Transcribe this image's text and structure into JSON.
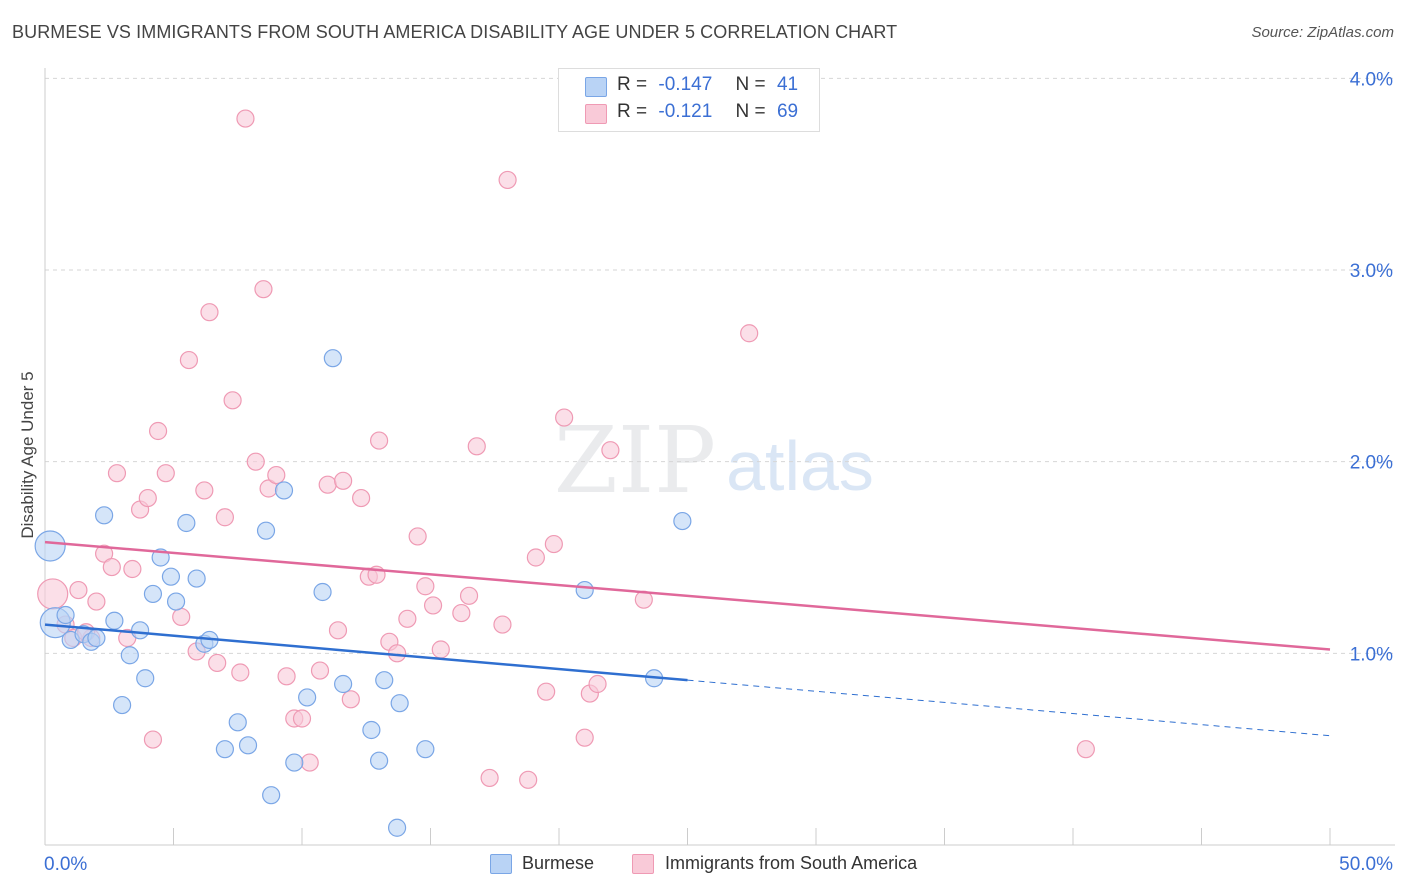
{
  "title": "BURMESE VS IMMIGRANTS FROM SOUTH AMERICA DISABILITY AGE UNDER 5 CORRELATION CHART",
  "source": "Source: ZipAtlas.com",
  "watermark_zip": "ZIP",
  "watermark_atlas": "atlas",
  "legend_top": [
    {
      "r_label": "R =",
      "r_value": "-0.147",
      "n_label": "N =",
      "n_value": "41"
    },
    {
      "r_label": "R =",
      "r_value": "-0.121",
      "n_label": "N =",
      "n_value": "69"
    }
  ],
  "chart_data": {
    "type": "scatter",
    "xlabel": "",
    "ylabel": "Disability Age Under 5",
    "xlim": [
      0,
      50
    ],
    "ylim": [
      0,
      4.2
    ],
    "x_tick_labels": [
      "0.0%",
      "50.0%"
    ],
    "y_ticks": [
      1.0,
      2.0,
      3.0,
      4.0
    ],
    "y_tick_labels": [
      "1.0%",
      "2.0%",
      "3.0%",
      "4.0%"
    ],
    "grid": true,
    "legend_position": "bottom",
    "colors": {
      "burmese_fill": "#b9d3f5",
      "burmese_stroke": "#7aa6e6",
      "burmese_line": "#2f6fd0",
      "sa_fill": "#f9cad8",
      "sa_stroke": "#ef9ab4",
      "sa_line": "#e0689a",
      "tick_label": "#3b6fd4"
    },
    "series": [
      {
        "name": "Burmese",
        "trend": {
          "x0": 0,
          "y0": 1.15,
          "x1": 25,
          "y1": 0.86,
          "dash_to_x": 50,
          "dash_to_y": 0.57
        },
        "points": [
          {
            "x": 0.2,
            "y": 1.56,
            "big": true
          },
          {
            "x": 0.4,
            "y": 1.16,
            "big": true
          },
          {
            "x": 0.8,
            "y": 1.2
          },
          {
            "x": 1.0,
            "y": 1.07
          },
          {
            "x": 1.5,
            "y": 1.1
          },
          {
            "x": 1.8,
            "y": 1.06
          },
          {
            "x": 2.0,
            "y": 1.08
          },
          {
            "x": 2.3,
            "y": 1.72
          },
          {
            "x": 2.7,
            "y": 1.17
          },
          {
            "x": 3.0,
            "y": 0.73
          },
          {
            "x": 3.3,
            "y": 0.99
          },
          {
            "x": 3.7,
            "y": 1.12
          },
          {
            "x": 3.9,
            "y": 0.87
          },
          {
            "x": 4.2,
            "y": 1.31
          },
          {
            "x": 4.5,
            "y": 1.5
          },
          {
            "x": 4.9,
            "y": 1.4
          },
          {
            "x": 5.1,
            "y": 1.27
          },
          {
            "x": 5.5,
            "y": 1.68
          },
          {
            "x": 5.9,
            "y": 1.39
          },
          {
            "x": 6.2,
            "y": 1.05
          },
          {
            "x": 6.4,
            "y": 1.07
          },
          {
            "x": 7.0,
            "y": 0.5
          },
          {
            "x": 7.5,
            "y": 0.64
          },
          {
            "x": 7.9,
            "y": 0.52
          },
          {
            "x": 8.6,
            "y": 1.64
          },
          {
            "x": 8.8,
            "y": 0.26
          },
          {
            "x": 9.3,
            "y": 1.85
          },
          {
            "x": 9.7,
            "y": 0.43
          },
          {
            "x": 10.2,
            "y": 0.77
          },
          {
            "x": 10.8,
            "y": 1.32
          },
          {
            "x": 11.2,
            "y": 2.54
          },
          {
            "x": 11.6,
            "y": 0.84
          },
          {
            "x": 12.7,
            "y": 0.6
          },
          {
            "x": 13.0,
            "y": 0.44
          },
          {
            "x": 13.2,
            "y": 0.86
          },
          {
            "x": 13.7,
            "y": 0.09
          },
          {
            "x": 13.8,
            "y": 0.74
          },
          {
            "x": 14.8,
            "y": 0.5
          },
          {
            "x": 21.0,
            "y": 1.33
          },
          {
            "x": 23.7,
            "y": 0.87
          },
          {
            "x": 24.8,
            "y": 1.69
          }
        ]
      },
      {
        "name": "Immigrants from South America",
        "trend": {
          "x0": 0,
          "y0": 1.58,
          "x1": 50,
          "y1": 1.02
        },
        "points": [
          {
            "x": 0.3,
            "y": 1.31,
            "big": true
          },
          {
            "x": 0.8,
            "y": 1.15
          },
          {
            "x": 1.1,
            "y": 1.08
          },
          {
            "x": 1.3,
            "y": 1.33
          },
          {
            "x": 1.8,
            "y": 1.08
          },
          {
            "x": 2.0,
            "y": 1.27
          },
          {
            "x": 2.3,
            "y": 1.52
          },
          {
            "x": 2.6,
            "y": 1.45
          },
          {
            "x": 2.8,
            "y": 1.94
          },
          {
            "x": 3.2,
            "y": 1.08
          },
          {
            "x": 3.4,
            "y": 1.44
          },
          {
            "x": 3.7,
            "y": 1.75
          },
          {
            "x": 4.0,
            "y": 1.81
          },
          {
            "x": 4.2,
            "y": 0.55
          },
          {
            "x": 4.4,
            "y": 2.16
          },
          {
            "x": 4.7,
            "y": 1.94
          },
          {
            "x": 5.3,
            "y": 1.19
          },
          {
            "x": 5.6,
            "y": 2.53
          },
          {
            "x": 5.9,
            "y": 1.01
          },
          {
            "x": 6.2,
            "y": 1.85
          },
          {
            "x": 6.4,
            "y": 2.78
          },
          {
            "x": 6.7,
            "y": 0.95
          },
          {
            "x": 7.0,
            "y": 1.71
          },
          {
            "x": 7.3,
            "y": 2.32
          },
          {
            "x": 7.6,
            "y": 0.9
          },
          {
            "x": 7.8,
            "y": 3.79
          },
          {
            "x": 8.2,
            "y": 2.0
          },
          {
            "x": 8.5,
            "y": 2.9
          },
          {
            "x": 8.7,
            "y": 1.86
          },
          {
            "x": 9.0,
            "y": 1.93
          },
          {
            "x": 9.4,
            "y": 0.88
          },
          {
            "x": 9.7,
            "y": 0.66
          },
          {
            "x": 10.0,
            "y": 0.66
          },
          {
            "x": 10.3,
            "y": 0.43
          },
          {
            "x": 10.7,
            "y": 0.91
          },
          {
            "x": 11.0,
            "y": 1.88
          },
          {
            "x": 11.4,
            "y": 1.12
          },
          {
            "x": 11.6,
            "y": 1.9
          },
          {
            "x": 11.9,
            "y": 0.76
          },
          {
            "x": 12.3,
            "y": 1.81
          },
          {
            "x": 12.6,
            "y": 1.4
          },
          {
            "x": 12.9,
            "y": 1.41
          },
          {
            "x": 13.0,
            "y": 2.11
          },
          {
            "x": 13.4,
            "y": 1.06
          },
          {
            "x": 13.7,
            "y": 1.0
          },
          {
            "x": 14.1,
            "y": 1.18
          },
          {
            "x": 14.5,
            "y": 1.61
          },
          {
            "x": 14.8,
            "y": 1.35
          },
          {
            "x": 15.1,
            "y": 1.25
          },
          {
            "x": 15.4,
            "y": 1.02
          },
          {
            "x": 16.2,
            "y": 1.21
          },
          {
            "x": 16.5,
            "y": 1.3
          },
          {
            "x": 16.8,
            "y": 2.08
          },
          {
            "x": 17.3,
            "y": 0.35
          },
          {
            "x": 17.8,
            "y": 1.15
          },
          {
            "x": 18.0,
            "y": 3.47
          },
          {
            "x": 18.8,
            "y": 0.34
          },
          {
            "x": 19.1,
            "y": 1.5
          },
          {
            "x": 19.5,
            "y": 0.8
          },
          {
            "x": 19.8,
            "y": 1.57
          },
          {
            "x": 20.2,
            "y": 2.23
          },
          {
            "x": 21.0,
            "y": 0.56
          },
          {
            "x": 21.2,
            "y": 0.79
          },
          {
            "x": 21.5,
            "y": 0.84
          },
          {
            "x": 22.0,
            "y": 2.06
          },
          {
            "x": 23.3,
            "y": 1.28
          },
          {
            "x": 27.4,
            "y": 2.67
          },
          {
            "x": 40.5,
            "y": 0.5
          },
          {
            "x": 1.6,
            "y": 1.11
          }
        ]
      }
    ]
  },
  "legend_bottom": [
    {
      "label": "Burmese"
    },
    {
      "label": "Immigrants from South America"
    }
  ]
}
